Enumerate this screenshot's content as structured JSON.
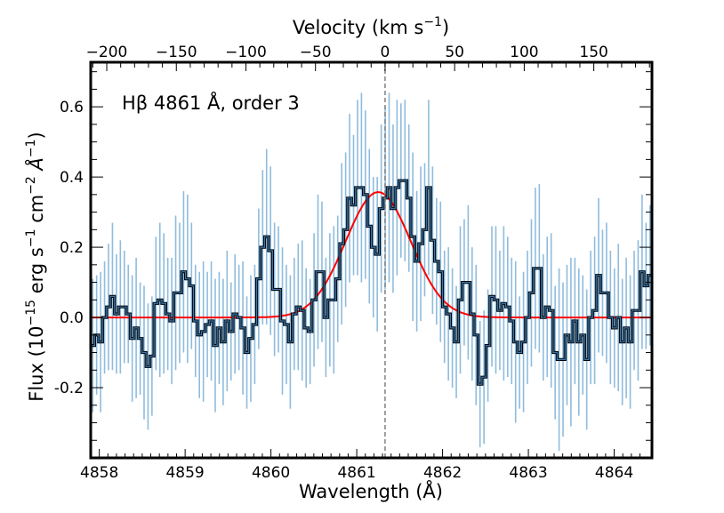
{
  "chart_data": {
    "type": "line",
    "subtype": "step-with-errorbars",
    "annotation": "Hβ 4861 Å, order 3",
    "xlabel": "Wavelength (Å)",
    "ylabel": "Flux (10^-15 erg s^-1 cm^-2 Å^-1)",
    "ylabel_parts": {
      "prefix": "Flux (10",
      "exp1": "−15",
      "mid1": " erg s",
      "exp2": "−1",
      "mid2": " cm",
      "exp3": "−2",
      "mid3": " Å",
      "exp4": "−1",
      "suffix": ")"
    },
    "top_xlabel": "Velocity (km s^-1)",
    "top_xlabel_parts": {
      "prefix": "Velocity (km s",
      "exp": "−1",
      "suffix": ")"
    },
    "xlim": [
      4857.9,
      4864.44
    ],
    "ylim": [
      -0.4,
      0.727
    ],
    "rest_wavelength": 4861.33,
    "x_ticks": [
      4858,
      4859,
      4860,
      4861,
      4862,
      4863,
      4864
    ],
    "x_tick_labels": [
      "4858",
      "4859",
      "4860",
      "4861",
      "4862",
      "4863",
      "4864"
    ],
    "y_ticks": [
      -0.2,
      0.0,
      0.2,
      0.4,
      0.6
    ],
    "y_tick_labels": [
      "-0.2",
      "0.0",
      "0.2",
      "0.4",
      "0.6"
    ],
    "top_ticks": [
      -200,
      -150,
      -100,
      -50,
      0,
      50,
      100,
      150
    ],
    "top_tick_labels": [
      "−200",
      "−150",
      "−100",
      "−50",
      "0",
      "50",
      "100",
      "150"
    ],
    "grid": false,
    "colors": {
      "data": "#000000",
      "data_inner": "#3a78b0",
      "errorbar": "#8fbcdd",
      "fit": "#ff0000",
      "zero_velocity_line": "#808080"
    },
    "series": [
      {
        "name": "flux",
        "style": "step",
        "values": [
          -0.08,
          -0.05,
          -0.07,
          0.0,
          0.03,
          0.06,
          0.01,
          0.03,
          0.03,
          0.01,
          -0.06,
          -0.03,
          -0.06,
          -0.1,
          -0.14,
          -0.11,
          0.04,
          0.05,
          0.04,
          0.01,
          -0.01,
          0.07,
          0.07,
          0.13,
          0.11,
          0.09,
          -0.01,
          -0.05,
          -0.04,
          -0.02,
          -0.01,
          -0.08,
          -0.03,
          -0.07,
          -0.01,
          -0.04,
          0.01,
          0.0,
          -0.03,
          -0.1,
          -0.06,
          -0.02,
          0.11,
          0.2,
          0.23,
          0.19,
          0.08,
          0.08,
          -0.01,
          -0.02,
          -0.07,
          0.01,
          0.03,
          0.02,
          -0.03,
          -0.04,
          0.05,
          0.13,
          0.13,
          0.0,
          0.05,
          0.05,
          0.11,
          0.21,
          0.25,
          0.34,
          0.32,
          0.37,
          0.37,
          0.35,
          0.26,
          0.2,
          0.18,
          0.31,
          0.34,
          0.37,
          0.31,
          0.37,
          0.39,
          0.39,
          0.34,
          0.23,
          0.16,
          0.21,
          0.25,
          0.37,
          0.22,
          0.16,
          0.13,
          0.03,
          0.01,
          -0.03,
          -0.07,
          0.05,
          0.1,
          0.1,
          0.01,
          -0.05,
          -0.19,
          -0.17,
          -0.08,
          0.06,
          0.05,
          0.02,
          0.04,
          0.03,
          -0.01,
          -0.07,
          -0.1,
          -0.07,
          0.0,
          0.07,
          0.14,
          0.14,
          0.0,
          0.03,
          0.02,
          -0.1,
          -0.12,
          -0.12,
          -0.05,
          -0.07,
          -0.01,
          -0.07,
          -0.05,
          -0.12,
          0.0,
          0.02,
          0.12,
          0.07,
          0.07,
          0.0,
          -0.03,
          0.0,
          -0.07,
          -0.03,
          -0.07,
          0.02,
          0.02,
          0.13,
          0.09,
          0.12
        ],
        "errors": [
          0.19,
          0.17,
          0.2,
          0.16,
          0.18,
          0.21,
          0.17,
          0.19,
          0.16,
          0.14,
          0.18,
          0.2,
          0.16,
          0.19,
          0.18,
          0.17,
          0.19,
          0.22,
          0.2,
          0.16,
          0.18,
          0.22,
          0.2,
          0.23,
          0.24,
          0.18,
          0.16,
          0.18,
          0.2,
          0.15,
          0.17,
          0.19,
          0.16,
          0.18,
          0.2,
          0.14,
          0.17,
          0.15,
          0.19,
          0.16,
          0.18,
          0.17,
          0.2,
          0.22,
          0.25,
          0.24,
          0.19,
          0.18,
          0.21,
          0.17,
          0.19,
          0.16,
          0.18,
          0.2,
          0.17,
          0.15,
          0.19,
          0.22,
          0.2,
          0.17,
          0.19,
          0.21,
          0.18,
          0.23,
          0.22,
          0.24,
          0.2,
          0.25,
          0.27,
          0.24,
          0.22,
          0.2,
          0.22,
          0.24,
          0.26,
          0.27,
          0.24,
          0.25,
          0.22,
          0.23,
          0.21,
          0.24,
          0.2,
          0.22,
          0.19,
          0.25,
          0.21,
          0.18,
          0.2,
          0.16,
          0.19,
          0.17,
          0.16,
          0.21,
          0.18,
          0.22,
          0.19,
          0.2,
          0.18,
          0.19,
          0.16,
          0.2,
          0.21,
          0.17,
          0.22,
          0.2,
          0.18,
          0.23,
          0.16,
          0.2,
          0.19,
          0.21,
          0.23,
          0.24,
          0.18,
          0.2,
          0.22,
          0.19,
          0.26,
          0.22,
          0.2,
          0.24,
          0.18,
          0.21,
          0.17,
          0.2,
          0.19,
          0.21,
          0.22,
          0.18,
          0.2,
          0.19,
          0.17,
          0.21,
          0.18,
          0.2,
          0.19,
          0.17,
          0.2,
          0.22,
          0.18,
          0.2
        ]
      },
      {
        "name": "gaussian fit",
        "style": "line",
        "center": 4861.25,
        "amplitude": 0.357,
        "sigma": 0.38,
        "baseline": 0.0
      }
    ]
  }
}
